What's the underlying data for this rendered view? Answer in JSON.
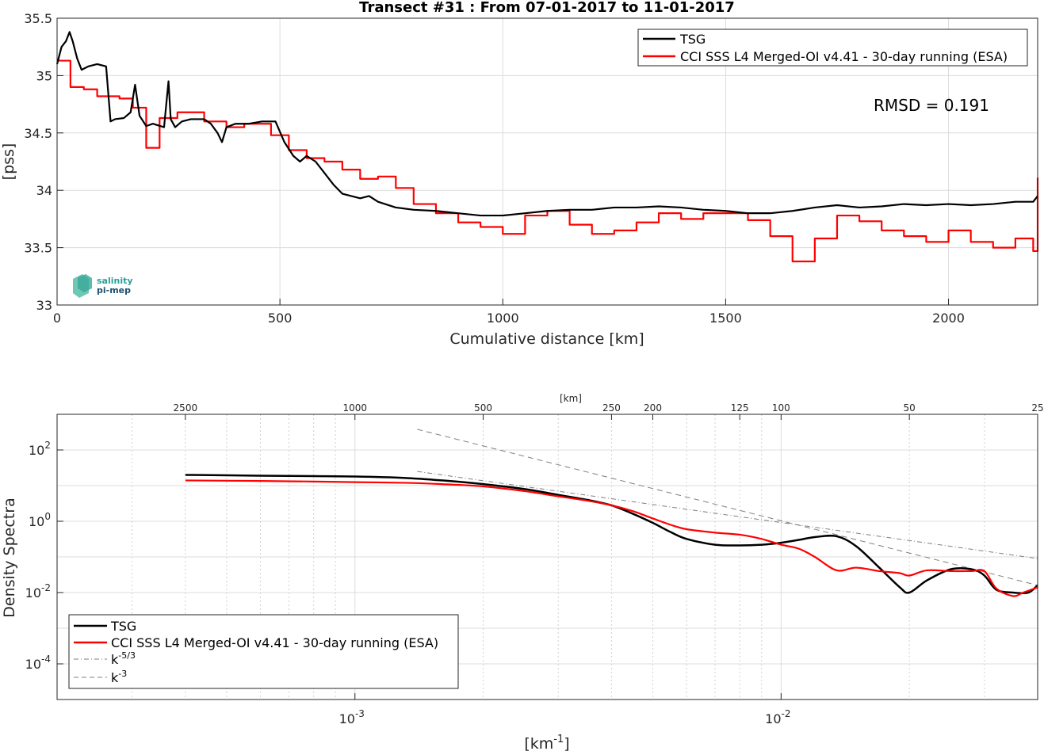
{
  "chart_data": [
    {
      "type": "line",
      "title": "Transect #31 : From 07-01-2017 to 11-01-2017",
      "xlabel": "Cumulative distance [km]",
      "ylabel": "[pss]",
      "xlim": [
        0,
        2200
      ],
      "ylim": [
        33,
        35.5
      ],
      "xticks": [
        "0",
        "500",
        "1000",
        "1500",
        "2000"
      ],
      "yticks": [
        "33",
        "33.5",
        "34",
        "34.5",
        "35",
        "35.5"
      ],
      "grid": true,
      "legend": "top-right",
      "annotation": "RMSD = 0.191",
      "logo": {
        "line1": "salinity",
        "line2": "pi-mep"
      },
      "series": [
        {
          "name": "TSG",
          "color": "#000000",
          "x": [
            0,
            10,
            20,
            28,
            35,
            45,
            55,
            70,
            90,
            110,
            120,
            130,
            150,
            165,
            175,
            185,
            200,
            215,
            240,
            250,
            255,
            265,
            280,
            300,
            330,
            345,
            360,
            370,
            380,
            400,
            430,
            460,
            490,
            510,
            530,
            545,
            560,
            580,
            600,
            620,
            640,
            660,
            680,
            700,
            720,
            760,
            800,
            850,
            900,
            950,
            1000,
            1050,
            1100,
            1150,
            1200,
            1250,
            1300,
            1350,
            1400,
            1450,
            1500,
            1550,
            1600,
            1650,
            1700,
            1750,
            1800,
            1850,
            1900,
            1950,
            2000,
            2050,
            2100,
            2150,
            2190,
            2200
          ],
          "y": [
            35.1,
            35.25,
            35.3,
            35.38,
            35.3,
            35.15,
            35.05,
            35.08,
            35.1,
            35.08,
            34.6,
            34.62,
            34.63,
            34.68,
            34.92,
            34.65,
            34.56,
            34.58,
            34.55,
            34.95,
            34.62,
            34.55,
            34.6,
            34.62,
            34.62,
            34.58,
            34.5,
            34.42,
            34.55,
            34.58,
            34.58,
            34.6,
            34.6,
            34.42,
            34.3,
            34.25,
            34.3,
            34.25,
            34.15,
            34.05,
            33.97,
            33.95,
            33.93,
            33.95,
            33.9,
            33.85,
            33.83,
            33.82,
            33.8,
            33.78,
            33.78,
            33.8,
            33.82,
            33.83,
            33.83,
            33.85,
            33.85,
            33.86,
            33.85,
            33.83,
            33.82,
            33.8,
            33.8,
            33.82,
            33.85,
            33.87,
            33.85,
            33.86,
            33.88,
            33.87,
            33.88,
            33.87,
            33.88,
            33.9,
            33.9,
            33.95
          ]
        },
        {
          "name": "CCI SSS L4 Merged-OI v4.41 - 30-day running (ESA)",
          "color": "#ff0000",
          "x": [
            0,
            30,
            60,
            90,
            140,
            170,
            200,
            230,
            270,
            330,
            380,
            420,
            480,
            520,
            560,
            600,
            640,
            680,
            720,
            760,
            800,
            850,
            900,
            950,
            1000,
            1050,
            1100,
            1150,
            1200,
            1250,
            1300,
            1350,
            1400,
            1450,
            1500,
            1550,
            1600,
            1650,
            1700,
            1750,
            1800,
            1850,
            1900,
            1950,
            2000,
            2050,
            2100,
            2150,
            2190,
            2200
          ],
          "y": [
            35.13,
            34.9,
            34.88,
            34.82,
            34.8,
            34.72,
            34.37,
            34.63,
            34.68,
            34.6,
            34.55,
            34.58,
            34.48,
            34.35,
            34.28,
            34.25,
            34.18,
            34.1,
            34.12,
            34.02,
            33.88,
            33.8,
            33.72,
            33.68,
            33.62,
            33.78,
            33.82,
            33.7,
            33.62,
            33.65,
            33.72,
            33.8,
            33.75,
            33.8,
            33.8,
            33.74,
            33.6,
            33.38,
            33.58,
            33.78,
            33.73,
            33.65,
            33.6,
            33.55,
            33.65,
            33.55,
            33.5,
            33.58,
            33.47,
            34.11
          ]
        }
      ]
    },
    {
      "type": "line",
      "xlabel": "[km",
      "xlabel_sup": "-1",
      "xlabel_end": "]",
      "ylabel": "Density Spectra",
      "xscale": "log",
      "yscale": "log",
      "xlim": [
        0.0002,
        0.04
      ],
      "ylim": [
        1e-05,
        1000
      ],
      "xticks": [
        {
          "base": "10",
          "exp": "-3"
        },
        {
          "base": "10",
          "exp": "-2"
        }
      ],
      "yticks": [
        {
          "base": "10",
          "exp": "-4"
        },
        {
          "base": "10",
          "exp": "-2"
        },
        {
          "base": "10",
          "exp": "0"
        },
        {
          "base": "10",
          "exp": "2"
        }
      ],
      "top_axis_label": "[km]",
      "top_ticks": [
        "2500",
        "1000",
        "500",
        "250",
        "200",
        "125",
        "100",
        "50",
        "25"
      ],
      "grid": true,
      "legend": "bottom-left",
      "series": [
        {
          "name": "TSG",
          "color": "#000000",
          "x": [
            0.0004,
            0.0006,
            0.0008,
            0.001,
            0.0013,
            0.0016,
            0.002,
            0.0025,
            0.003,
            0.0035,
            0.004,
            0.0045,
            0.005,
            0.0055,
            0.006,
            0.007,
            0.008,
            0.009,
            0.01,
            0.011,
            0.012,
            0.0135,
            0.015,
            0.017,
            0.019,
            0.02,
            0.022,
            0.025,
            0.028,
            0.03,
            0.032,
            0.035,
            0.038,
            0.04
          ],
          "y": [
            20,
            19,
            18.5,
            18,
            16.5,
            14,
            11,
            8,
            5.5,
            4,
            2.8,
            1.6,
            0.9,
            0.5,
            0.32,
            0.22,
            0.21,
            0.22,
            0.25,
            0.3,
            0.36,
            0.38,
            0.2,
            0.05,
            0.014,
            0.01,
            0.022,
            0.045,
            0.045,
            0.03,
            0.012,
            0.01,
            0.01,
            0.016
          ]
        },
        {
          "name": "CCI SSS L4 Merged-OI v4.41 - 30-day running (ESA)",
          "color": "#ff0000",
          "x": [
            0.0004,
            0.0006,
            0.0008,
            0.001,
            0.0013,
            0.0016,
            0.002,
            0.0025,
            0.003,
            0.0035,
            0.004,
            0.0045,
            0.005,
            0.0055,
            0.006,
            0.007,
            0.008,
            0.009,
            0.01,
            0.011,
            0.012,
            0.0135,
            0.015,
            0.017,
            0.019,
            0.02,
            0.022,
            0.025,
            0.028,
            0.03,
            0.032,
            0.035,
            0.037,
            0.04
          ],
          "y": [
            14,
            13.5,
            13,
            12.5,
            12,
            11,
            9.5,
            7,
            5,
            3.8,
            2.8,
            1.9,
            1.2,
            0.8,
            0.6,
            0.48,
            0.42,
            0.32,
            0.22,
            0.17,
            0.1,
            0.042,
            0.05,
            0.04,
            0.035,
            0.03,
            0.042,
            0.04,
            0.04,
            0.04,
            0.013,
            0.008,
            0.01,
            0.014
          ]
        },
        {
          "name": "k-5/3",
          "color": "#7f7f7f",
          "x": [
            0.0014,
            0.04
          ],
          "y": [
            25,
            0.09
          ]
        },
        {
          "name": "k-3",
          "color": "#7f7f7f",
          "x": [
            0.0014,
            0.04
          ],
          "y": [
            380,
            0.016
          ]
        }
      ],
      "legend_labels": {
        "tsg": "TSG",
        "cci": "CCI SSS L4 Merged-OI v4.41 - 30-day running (ESA)",
        "k53_base": "k",
        "k53_sup": "-5/3",
        "k3_base": "k",
        "k3_sup": "-3"
      }
    }
  ]
}
